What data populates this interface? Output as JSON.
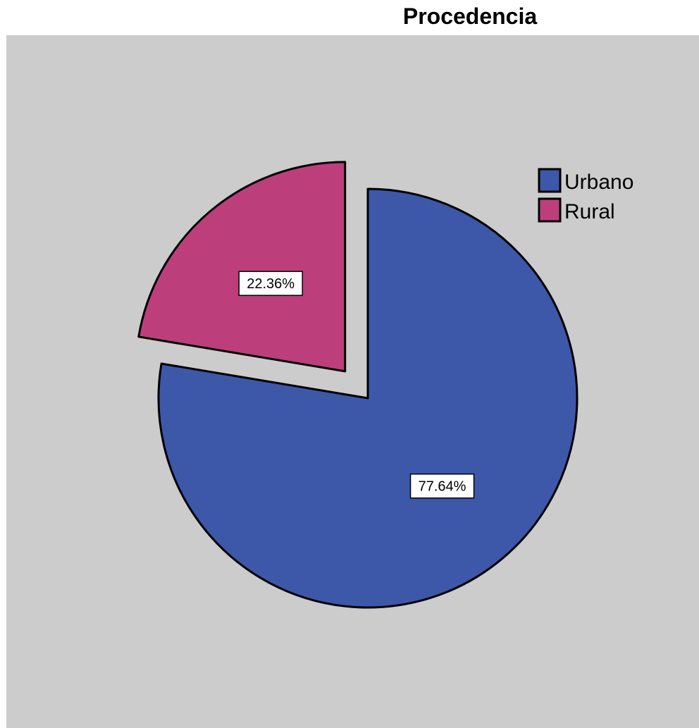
{
  "chart_data": {
    "type": "pie",
    "title": "Procedencia",
    "categories": [
      "Urbano",
      "Rural"
    ],
    "values": [
      77.64,
      22.36
    ],
    "data_labels": [
      "77.64%",
      "22.36%"
    ],
    "colors": [
      "#3d57a9",
      "#bc3f7c"
    ],
    "exploded": [
      "Rural"
    ],
    "legend_placement": "top-right",
    "background_color": "#cccccc"
  }
}
